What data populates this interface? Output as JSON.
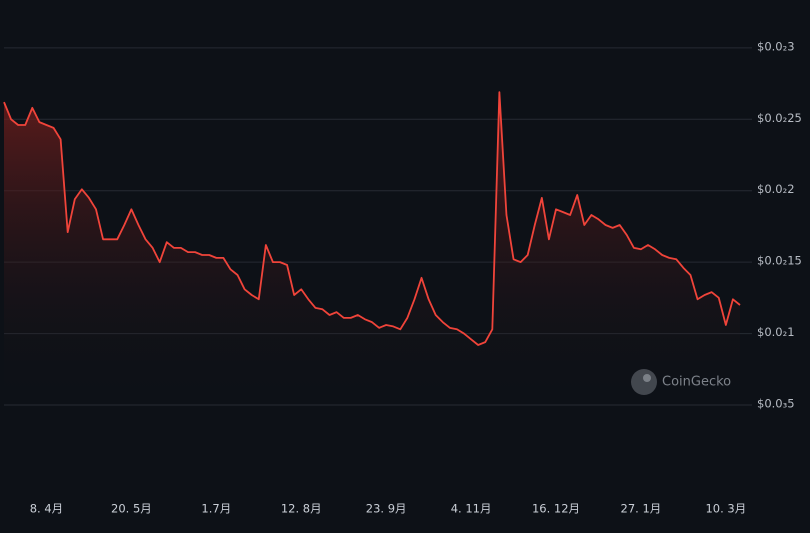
{
  "chart_data": {
    "type": "line",
    "categories": [
      null,
      null,
      null,
      null,
      null,
      null,
      "8. 4月",
      null,
      null,
      null,
      null,
      null,
      null,
      null,
      null,
      null,
      null,
      null,
      "20. 5月",
      null,
      null,
      null,
      null,
      null,
      null,
      null,
      null,
      null,
      null,
      null,
      "1.7月",
      null,
      null,
      null,
      null,
      null,
      null,
      null,
      null,
      null,
      null,
      null,
      "12. 8月",
      null,
      null,
      null,
      null,
      null,
      null,
      null,
      null,
      null,
      null,
      null,
      "23. 9月",
      null,
      null,
      null,
      null,
      null,
      null,
      null,
      null,
      null,
      null,
      null,
      "4. 11月",
      null,
      null,
      null,
      null,
      null,
      null,
      null,
      null,
      null,
      null,
      null,
      "16. 12月",
      null,
      null,
      null,
      null,
      null,
      null,
      null,
      null,
      null,
      null,
      null,
      "27. 1月",
      null,
      null,
      null,
      null,
      null,
      null,
      null,
      null,
      null,
      null,
      null,
      "10. 3月",
      null,
      null
    ],
    "series": [
      {
        "color": "#f0443a",
        "values": [
          0.00262,
          0.0025,
          0.00246,
          0.00246,
          0.00258,
          0.00248,
          0.00246,
          0.00244,
          0.00236,
          0.00171,
          0.00194,
          0.00201,
          0.00195,
          0.00187,
          0.00166,
          0.00166,
          0.00166,
          0.00176,
          0.00187,
          0.00176,
          0.00166,
          0.0016,
          0.0015,
          0.00164,
          0.0016,
          0.0016,
          0.00157,
          0.00157,
          0.00155,
          0.00155,
          0.00153,
          0.00153,
          0.00145,
          0.00141,
          0.00131,
          0.00127,
          0.00124,
          0.00162,
          0.0015,
          0.0015,
          0.00148,
          0.00127,
          0.00131,
          0.00124,
          0.00118,
          0.00117,
          0.00113,
          0.00115,
          0.00111,
          0.00111,
          0.00113,
          0.0011,
          0.00108,
          0.00104,
          0.00106,
          0.00105,
          0.00103,
          0.00111,
          0.00124,
          0.00139,
          0.00124,
          0.00113,
          0.00108,
          0.00104,
          0.00103,
          0.001,
          0.00096,
          0.00092,
          0.00094,
          0.00103,
          0.00269,
          0.00183,
          0.00152,
          0.0015,
          0.00155,
          0.00176,
          0.00195,
          0.00166,
          0.00187,
          0.00185,
          0.00183,
          0.00197,
          0.00176,
          0.00183,
          0.0018,
          0.00176,
          0.00174,
          0.00176,
          0.00169,
          0.0016,
          0.00159,
          0.00162,
          0.00159,
          0.00155,
          0.00153,
          0.00152,
          0.00146,
          0.00141,
          0.00124,
          0.00127,
          0.00129,
          0.00125,
          0.00106,
          0.00124,
          0.0012
        ]
      }
    ],
    "ylim": [
      0.0005,
      0.0033
    ],
    "yticks": [
      {
        "value": 0.0005,
        "label": "$0.0₃5"
      },
      {
        "value": 0.001,
        "label": "$0.0₂1"
      },
      {
        "value": 0.0015,
        "label": "$0.0₂15"
      },
      {
        "value": 0.002,
        "label": "$0.0₂2"
      },
      {
        "value": 0.0025,
        "label": "$0.0₂25"
      },
      {
        "value": 0.003,
        "label": "$0.0₂3"
      }
    ],
    "grid": true,
    "watermark": "CoinGecko"
  }
}
